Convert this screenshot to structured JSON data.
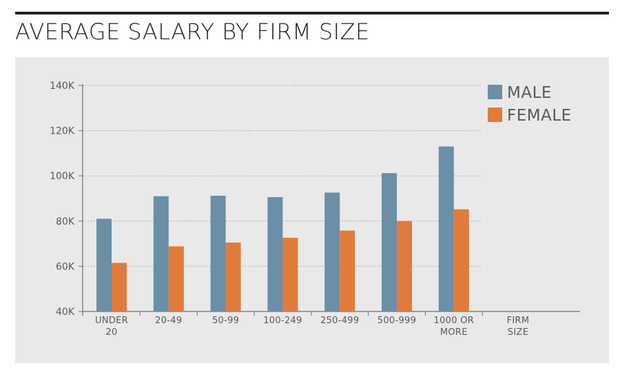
{
  "header": {
    "title": "AVERAGE SALARY BY FIRM SIZE"
  },
  "chart_data": {
    "type": "bar",
    "title": "AVERAGE SALARY BY FIRM SIZE",
    "xlabel": [
      "FIRM",
      "SIZE"
    ],
    "ylabel": "",
    "ylim": [
      40000,
      140000
    ],
    "yticks": [
      40000,
      60000,
      80000,
      100000,
      120000,
      140000
    ],
    "ytick_labels": [
      "40K",
      "60K",
      "80K",
      "100K",
      "120K",
      "140K"
    ],
    "categories": [
      [
        "UNDER",
        "20"
      ],
      [
        "20-49"
      ],
      [
        "50-99"
      ],
      [
        "100-249"
      ],
      [
        "250-499"
      ],
      [
        "500-999"
      ],
      [
        "1000 OR",
        "MORE"
      ]
    ],
    "series": [
      {
        "name": "MALE",
        "color": "#6a8fa6",
        "values": [
          81000,
          91000,
          91200,
          90600,
          92600,
          101200,
          113000
        ]
      },
      {
        "name": "FEMALE",
        "color": "#e07b3c",
        "values": [
          61500,
          68800,
          70500,
          72600,
          75800,
          80000,
          85200
        ]
      }
    ],
    "grid": true,
    "legend_position": "top-right"
  }
}
